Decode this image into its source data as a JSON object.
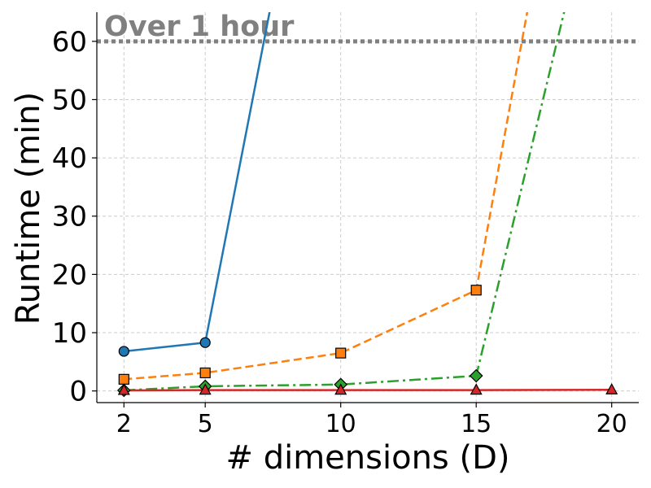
{
  "chart_data": {
    "type": "line",
    "xlabel": "# dimensions (D)",
    "ylabel": "Runtime (min)",
    "xlim": [
      1,
      21
    ],
    "ylim": [
      -2,
      65
    ],
    "xticks": [
      2,
      5,
      10,
      15,
      20
    ],
    "yticks": [
      0,
      10,
      20,
      30,
      40,
      50,
      60
    ],
    "grid": true,
    "threshold": {
      "y": 60,
      "label": "Over 1 hour",
      "color": "#808080",
      "style": "dotted"
    },
    "series": [
      {
        "color": "#1f77b4",
        "style": "solid",
        "marker": "circle",
        "points": [
          [
            2,
            6.8
          ],
          [
            5,
            8.3
          ],
          [
            7.5,
            68
          ]
        ]
      },
      {
        "color": "#ff7f0e",
        "style": "dashed",
        "marker": "square",
        "points": [
          [
            2,
            2.0
          ],
          [
            5,
            3.1
          ],
          [
            10,
            6.5
          ],
          [
            15,
            17.3
          ],
          [
            17,
            68
          ]
        ]
      },
      {
        "color": "#2ca02c",
        "style": "dashdot",
        "marker": "diamond",
        "points": [
          [
            2,
            0.1
          ],
          [
            5,
            0.8
          ],
          [
            10,
            1.1
          ],
          [
            15,
            2.6
          ],
          [
            18.4,
            68
          ]
        ]
      },
      {
        "color": "#d62728",
        "style": "solid",
        "marker": "triangle",
        "points": [
          [
            2,
            0.1
          ],
          [
            5,
            0.15
          ],
          [
            10,
            0.15
          ],
          [
            15,
            0.15
          ],
          [
            20,
            0.2
          ]
        ]
      }
    ]
  }
}
